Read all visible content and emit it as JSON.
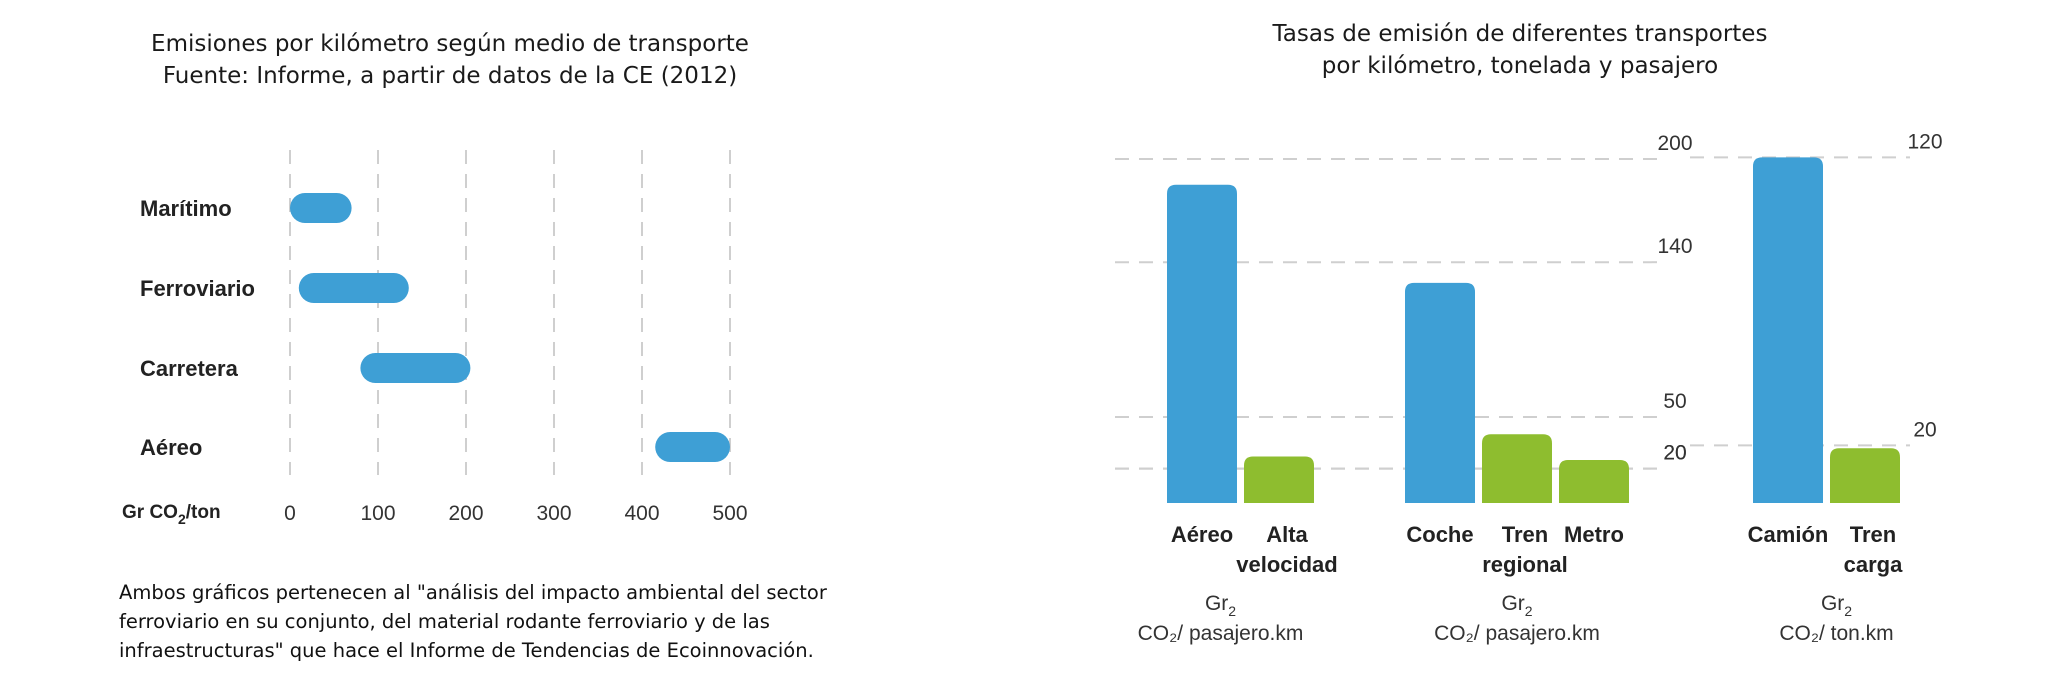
{
  "left_chart": {
    "title_line1": "Emisiones por kilómetro según medio de transporte",
    "title_line2": "Fuente: Informe, a partir de datos de la CE (2012)"
  },
  "right_chart": {
    "title_line1": "Tasas de emisión de diferentes transportes",
    "title_line2": "por kilómetro, tonelada y pasajero"
  },
  "footnote": {
    "line1": "Ambos gráficos pertenecen al \"análisis del impacto ambiental del sector",
    "line2": "ferroviario en su conjunto, del material rodante ferroviario y de las",
    "line3": "infraestructuras\" que hace el Informe de Tendencias de Ecoinnovación."
  },
  "colors": {
    "blue": "#3e9fd5",
    "green": "#8ebd2f",
    "grid": "#cfcfcf"
  },
  "chart_data": [
    {
      "type": "bar",
      "orientation": "horizontal-range",
      "title": "Emisiones por kilómetro según medio de transporte",
      "subtitle": "Fuente: Informe, a partir de datos de la CE (2012)",
      "xlabel": "Gr CO₂/ton",
      "xlim": [
        0,
        500
      ],
      "xticks": [
        0,
        100,
        200,
        300,
        400,
        500
      ],
      "grid": "vertical dashed",
      "categories": [
        "Marítimo",
        "Ferroviario",
        "Carretera",
        "Aéreo"
      ],
      "ranges": [
        [
          0,
          70
        ],
        [
          10,
          135
        ],
        [
          80,
          205
        ],
        [
          415,
          500
        ]
      ]
    },
    {
      "type": "bar",
      "title": "Tasas de emisión de diferentes transportes",
      "subtitle": "por kilómetro, tonelada y pasajero",
      "groups": [
        {
          "unit": "Gr CO₂/ pasajero.km",
          "reference_lines": [
            200,
            20
          ],
          "bars": [
            {
              "label": "Aéreo",
              "value": 185,
              "color": "blue"
            },
            {
              "label": "Alta velocidad",
              "value": 27,
              "color": "green"
            }
          ]
        },
        {
          "unit": "Gr CO₂/ pasajero.km",
          "reference_lines": [
            140,
            50,
            20
          ],
          "bars": [
            {
              "label": "Coche",
              "value": 128,
              "color": "blue"
            },
            {
              "label": "Tren regional",
              "value": 40,
              "color": "green"
            },
            {
              "label": "Metro",
              "value": 25,
              "color": "green"
            }
          ]
        },
        {
          "unit": "Gr CO₂/ ton.km",
          "reference_lines": [
            120,
            20
          ],
          "bars": [
            {
              "label": "Camión",
              "value": 120,
              "color": "blue"
            },
            {
              "label": "Tren carga",
              "value": 19,
              "color": "green"
            }
          ]
        }
      ]
    }
  ]
}
